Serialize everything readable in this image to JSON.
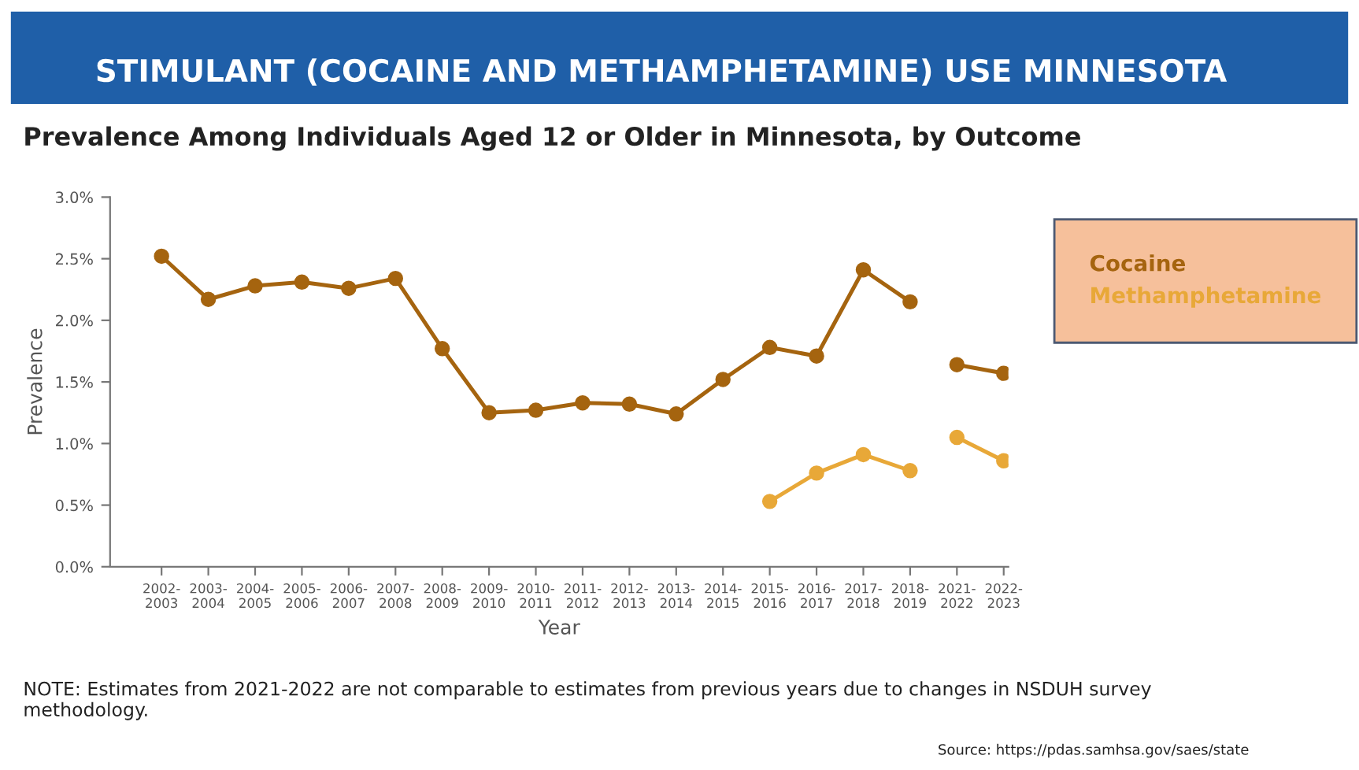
{
  "chart_data": {
    "type": "line",
    "title": "STIMULANT (COCAINE AND METHAMPHETAMINE) USE MINNESOTA",
    "subtitle": "Prevalence Among Individuals Aged 12 or Older in Minnesota, by Outcome",
    "xlabel": "Year",
    "ylabel": "Prevalence",
    "categories": [
      "2002-\n2003",
      "2003-\n2004",
      "2004-\n2005",
      "2005-\n2006",
      "2006-\n2007",
      "2007-\n2008",
      "2008-\n2009",
      "2009-\n2010",
      "2010-\n2011",
      "2011-\n2012",
      "2012-\n2013",
      "2013-\n2014",
      "2014-\n2015",
      "2015-\n2016",
      "2016-\n2017",
      "2017-\n2018",
      "2018-\n2019",
      "2021-\n2022",
      "2022-\n2023"
    ],
    "series": [
      {
        "name": "Cocaine",
        "color": "#a5640f",
        "values": [
          2.52,
          2.17,
          2.28,
          2.31,
          2.26,
          2.34,
          1.77,
          1.25,
          1.27,
          1.33,
          1.32,
          1.24,
          1.52,
          1.78,
          1.71,
          2.41,
          2.15,
          null,
          null
        ]
      },
      {
        "name": "Methamphetamine",
        "color": "#e8a838",
        "values": [
          null,
          null,
          null,
          null,
          null,
          null,
          null,
          null,
          null,
          null,
          null,
          null,
          null,
          0.53,
          0.76,
          0.91,
          0.78,
          null,
          null
        ]
      },
      {
        "color": "#a5640f",
        "values": [
          null,
          null,
          null,
          null,
          null,
          null,
          null,
          null,
          null,
          null,
          null,
          null,
          null,
          null,
          null,
          null,
          null,
          1.64,
          1.57
        ]
      },
      {
        "color": "#e8a838",
        "values": [
          null,
          null,
          null,
          null,
          null,
          null,
          null,
          null,
          null,
          null,
          null,
          null,
          null,
          null,
          null,
          null,
          null,
          1.05,
          0.86
        ]
      }
    ],
    "ylim": [
      0,
      3
    ],
    "yticks": [
      {
        "value": 0,
        "label": "0.0%"
      },
      {
        "value": 0.5,
        "label": "0.5%"
      },
      {
        "value": 1,
        "label": "1.0%"
      },
      {
        "value": 1.5,
        "label": "1.5%"
      },
      {
        "value": 2,
        "label": "2.0%"
      },
      {
        "value": 2.5,
        "label": "2.5%"
      },
      {
        "value": 3,
        "label": "3.0%"
      }
    ],
    "marker": "circle",
    "line_style": "solid",
    "legend": "right",
    "annotations": [
      "NOTE: Estimates from 2021-2022 are not comparable to estimates from previous years due to changes in NSDUH survey\nmethodology.",
      "Source: https://pdas.samhsa.gov/saes/state"
    ]
  }
}
